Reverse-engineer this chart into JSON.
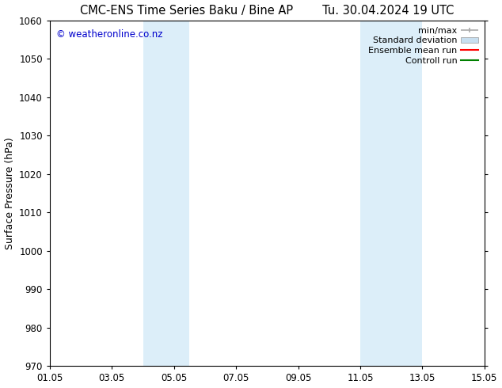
{
  "title_left": "CMC-ENS Time Series Baku / Bine AP",
  "title_right": "Tu. 30.04.2024 19 UTC",
  "ylabel": "Surface Pressure (hPa)",
  "ylim": [
    970,
    1060
  ],
  "yticks": [
    970,
    980,
    990,
    1000,
    1010,
    1020,
    1030,
    1040,
    1050,
    1060
  ],
  "xtick_labels": [
    "01.05",
    "03.05",
    "05.05",
    "07.05",
    "09.05",
    "11.05",
    "13.05",
    "15.05"
  ],
  "xtick_positions": [
    0,
    2,
    4,
    6,
    8,
    10,
    12,
    14
  ],
  "xlim": [
    0,
    14
  ],
  "shaded_bands": [
    {
      "xstart": 3.0,
      "xend": 4.5
    },
    {
      "xstart": 10.0,
      "xend": 12.0
    }
  ],
  "shaded_color": "#dceef9",
  "background_color": "#ffffff",
  "watermark_text": "© weatheronline.co.nz",
  "watermark_color": "#0000cc",
  "legend_items": [
    {
      "label": "min/max",
      "color": "#aaaaaa",
      "style": "minmax"
    },
    {
      "label": "Standard deviation",
      "color": "#c8dff0",
      "style": "fill"
    },
    {
      "label": "Ensemble mean run",
      "color": "#ff0000",
      "style": "line"
    },
    {
      "label": "Controll run",
      "color": "#008000",
      "style": "line"
    }
  ],
  "title_fontsize": 10.5,
  "tick_fontsize": 8.5,
  "ylabel_fontsize": 9,
  "legend_fontsize": 8,
  "watermark_fontsize": 8.5
}
